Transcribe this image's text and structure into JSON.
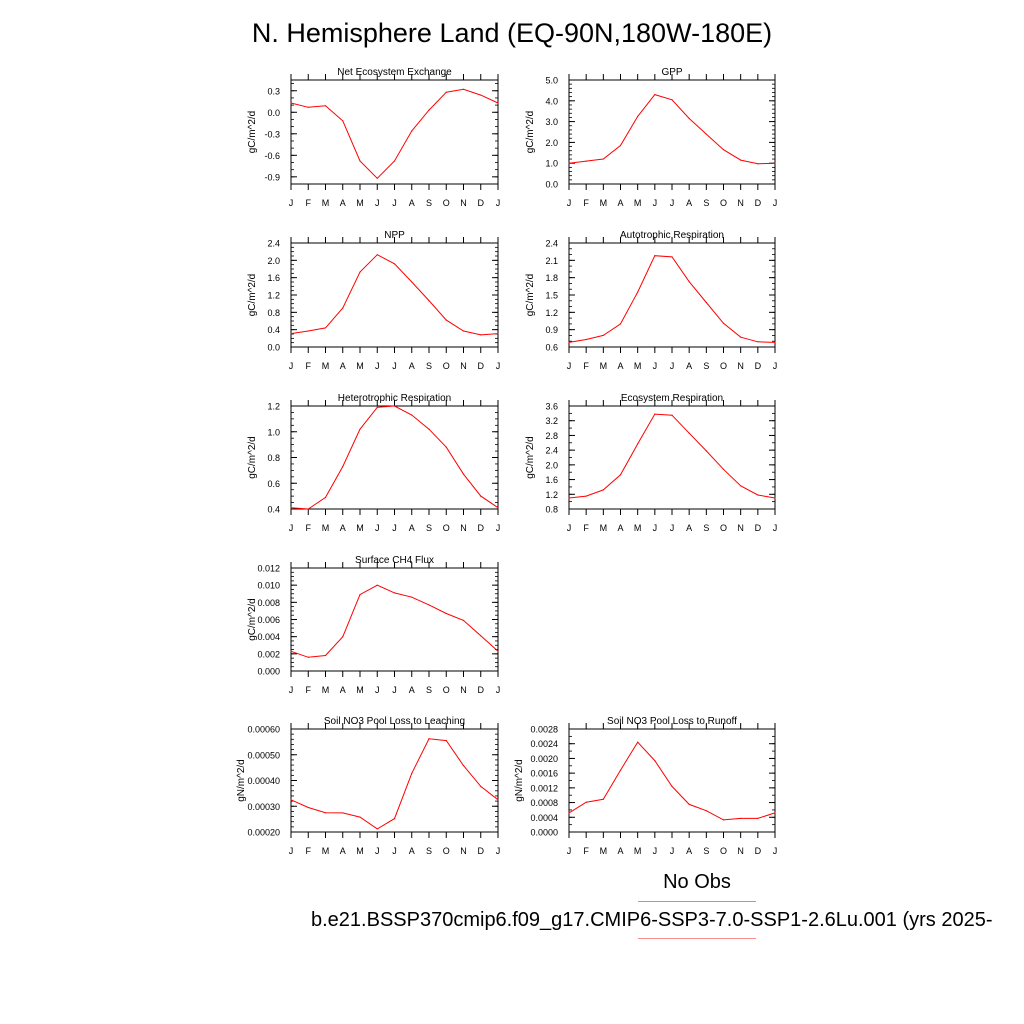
{
  "figure": {
    "title": "N. Hemisphere Land (EQ-90N,180W-180E)",
    "legend": {
      "obs_label": "No Obs",
      "obs_color": "#8f98f4",
      "case_label": "b.e21.BSSP370cmip6.f09_g17.CMIP6-SSP3-7.0-SSP1-2.6Lu.001 (yrs 2025-",
      "case_color": "#f48f8f"
    },
    "line_color": "#ff0000"
  },
  "chart_data": [
    {
      "type": "line",
      "title": "Net Ecosystem Exchange",
      "ylabel": "gC/m^2/d",
      "x": [
        "J",
        "F",
        "M",
        "A",
        "M",
        "J",
        "J",
        "A",
        "S",
        "O",
        "N",
        "D",
        "J"
      ],
      "series": [
        {
          "values": [
            0.13,
            0.07,
            0.09,
            -0.12,
            -0.68,
            -0.92,
            -0.68,
            -0.26,
            0.03,
            0.28,
            0.32,
            0.24,
            0.13
          ]
        }
      ],
      "ylim": [
        -1.0,
        0.45
      ],
      "yticks": [
        {
          "v": -0.9,
          "label": "-0.9"
        },
        {
          "v": -0.6,
          "label": "-0.6"
        },
        {
          "v": -0.3,
          "label": "-0.3"
        },
        {
          "v": 0.0,
          "label": "0.0"
        },
        {
          "v": 0.3,
          "label": "0.3"
        }
      ],
      "yminor": 0.1
    },
    {
      "type": "line",
      "title": "GPP",
      "ylabel": "gC/m^2/d",
      "x": [
        "J",
        "F",
        "M",
        "A",
        "M",
        "J",
        "J",
        "A",
        "S",
        "O",
        "N",
        "D",
        "J"
      ],
      "series": [
        {
          "values": [
            1.0,
            1.1,
            1.2,
            1.85,
            3.25,
            4.3,
            4.05,
            3.15,
            2.4,
            1.65,
            1.15,
            0.97,
            1.0
          ]
        }
      ],
      "ylim": [
        0.0,
        5.0
      ],
      "yticks": [
        {
          "v": 0,
          "label": "0.0"
        },
        {
          "v": 1,
          "label": "1.0"
        },
        {
          "v": 2,
          "label": "2.0"
        },
        {
          "v": 3,
          "label": "3.0"
        },
        {
          "v": 4,
          "label": "4.0"
        },
        {
          "v": 5,
          "label": "5.0"
        }
      ],
      "yminor": 0.2
    },
    {
      "type": "line",
      "title": "NPP",
      "ylabel": "gC/m^2/d",
      "x": [
        "J",
        "F",
        "M",
        "A",
        "M",
        "J",
        "J",
        "A",
        "S",
        "O",
        "N",
        "D",
        "J"
      ],
      "series": [
        {
          "values": [
            0.31,
            0.37,
            0.44,
            0.9,
            1.73,
            2.13,
            1.92,
            1.5,
            1.07,
            0.62,
            0.37,
            0.28,
            0.31
          ]
        }
      ],
      "ylim": [
        0.0,
        2.4
      ],
      "yticks": [
        {
          "v": 0,
          "label": "0.0"
        },
        {
          "v": 0.4,
          "label": "0.4"
        },
        {
          "v": 0.8,
          "label": "0.8"
        },
        {
          "v": 1.2,
          "label": "1.2"
        },
        {
          "v": 1.6,
          "label": "1.6"
        },
        {
          "v": 2.0,
          "label": "2.0"
        },
        {
          "v": 2.4,
          "label": "2.4"
        }
      ],
      "yminor": 0.1
    },
    {
      "type": "line",
      "title": "Autotrophic Respiration",
      "ylabel": "gC/m^2/d",
      "x": [
        "J",
        "F",
        "M",
        "A",
        "M",
        "J",
        "J",
        "A",
        "S",
        "O",
        "N",
        "D",
        "J"
      ],
      "series": [
        {
          "values": [
            0.68,
            0.73,
            0.8,
            1.0,
            1.55,
            2.18,
            2.16,
            1.73,
            1.37,
            1.01,
            0.77,
            0.69,
            0.68
          ]
        }
      ],
      "ylim": [
        0.6,
        2.4
      ],
      "yticks": [
        {
          "v": 0.6,
          "label": "0.6"
        },
        {
          "v": 0.9,
          "label": "0.9"
        },
        {
          "v": 1.2,
          "label": "1.2"
        },
        {
          "v": 1.5,
          "label": "1.5"
        },
        {
          "v": 1.8,
          "label": "1.8"
        },
        {
          "v": 2.1,
          "label": "2.1"
        },
        {
          "v": 2.4,
          "label": "2.4"
        }
      ],
      "yminor": 0.1
    },
    {
      "type": "line",
      "title": "Heterotrophic Respiration",
      "ylabel": "gC/m^2/d",
      "x": [
        "J",
        "F",
        "M",
        "A",
        "M",
        "J",
        "J",
        "A",
        "S",
        "O",
        "N",
        "D",
        "J"
      ],
      "series": [
        {
          "values": [
            0.41,
            0.4,
            0.49,
            0.73,
            1.02,
            1.19,
            1.2,
            1.13,
            1.02,
            0.88,
            0.67,
            0.5,
            0.41
          ]
        }
      ],
      "ylim": [
        0.4,
        1.2
      ],
      "yticks": [
        {
          "v": 0.4,
          "label": "0.4"
        },
        {
          "v": 0.6,
          "label": "0.6"
        },
        {
          "v": 0.8,
          "label": "0.8"
        },
        {
          "v": 1.0,
          "label": "1.0"
        },
        {
          "v": 1.2,
          "label": "1.2"
        }
      ],
      "yminor": 0.05
    },
    {
      "type": "line",
      "title": "Ecosystem Respiration",
      "ylabel": "gC/m^2/d",
      "x": [
        "J",
        "F",
        "M",
        "A",
        "M",
        "J",
        "J",
        "A",
        "S",
        "O",
        "N",
        "D",
        "J"
      ],
      "series": [
        {
          "values": [
            1.1,
            1.15,
            1.32,
            1.73,
            2.57,
            3.38,
            3.35,
            2.86,
            2.38,
            1.88,
            1.43,
            1.18,
            1.1
          ]
        }
      ],
      "ylim": [
        0.8,
        3.6
      ],
      "yticks": [
        {
          "v": 0.8,
          "label": "0.8"
        },
        {
          "v": 1.2,
          "label": "1.2"
        },
        {
          "v": 1.6,
          "label": "1.6"
        },
        {
          "v": 2.0,
          "label": "2.0"
        },
        {
          "v": 2.4,
          "label": "2.4"
        },
        {
          "v": 2.8,
          "label": "2.8"
        },
        {
          "v": 3.2,
          "label": "3.2"
        },
        {
          "v": 3.6,
          "label": "3.6"
        }
      ],
      "yminor": 0.2
    },
    {
      "type": "line",
      "title": "Surface CH4 Flux",
      "ylabel": "gC/m^2/d",
      "x": [
        "J",
        "F",
        "M",
        "A",
        "M",
        "J",
        "J",
        "A",
        "S",
        "O",
        "N",
        "D",
        "J"
      ],
      "series": [
        {
          "values": [
            0.0023,
            0.0016,
            0.0018,
            0.004,
            0.0089,
            0.01,
            0.0091,
            0.0086,
            0.0077,
            0.0067,
            0.0059,
            0.0041,
            0.0023
          ]
        }
      ],
      "ylim": [
        0.0,
        0.012
      ],
      "yticks": [
        {
          "v": 0,
          "label": "0.000"
        },
        {
          "v": 0.002,
          "label": "0.002"
        },
        {
          "v": 0.004,
          "label": "0.004"
        },
        {
          "v": 0.006,
          "label": "0.006"
        },
        {
          "v": 0.008,
          "label": "0.008"
        },
        {
          "v": 0.01,
          "label": "0.010"
        },
        {
          "v": 0.012,
          "label": "0.012"
        }
      ],
      "yminor": 0.0005
    },
    {
      "type": "line",
      "title": "Soil NO3 Pool Loss to Leaching",
      "ylabel": "gN/m^2/d",
      "x": [
        "J",
        "F",
        "M",
        "A",
        "M",
        "J",
        "J",
        "A",
        "S",
        "O",
        "N",
        "D",
        "J"
      ],
      "series": [
        {
          "values": [
            0.000325,
            0.000295,
            0.000275,
            0.000274,
            0.000258,
            0.000212,
            0.000252,
            0.000428,
            0.000562,
            0.000555,
            0.000458,
            0.000377,
            0.000325
          ]
        }
      ],
      "ylim": [
        0.0002,
        0.0006
      ],
      "yticks": [
        {
          "v": 0.0002,
          "label": "0.00020"
        },
        {
          "v": 0.0003,
          "label": "0.00030"
        },
        {
          "v": 0.0004,
          "label": "0.00040"
        },
        {
          "v": 0.0005,
          "label": "0.00050"
        },
        {
          "v": 0.0006,
          "label": "0.00060"
        }
      ],
      "yminor": 2e-05
    },
    {
      "type": "line",
      "title": "Soil NO3 Pool Loss to Runoff",
      "ylabel": "gN/m^2/d",
      "x": [
        "J",
        "F",
        "M",
        "A",
        "M",
        "J",
        "J",
        "A",
        "S",
        "O",
        "N",
        "D",
        "J"
      ],
      "series": [
        {
          "values": [
            0.00052,
            0.00081,
            0.00089,
            0.00168,
            0.00244,
            0.00194,
            0.00124,
            0.00075,
            0.00058,
            0.00033,
            0.00037,
            0.00037,
            0.00052
          ]
        }
      ],
      "ylim": [
        0.0,
        0.0028
      ],
      "yticks": [
        {
          "v": 0,
          "label": "0.0000"
        },
        {
          "v": 0.0004,
          "label": "0.0004"
        },
        {
          "v": 0.0008,
          "label": "0.0008"
        },
        {
          "v": 0.0012,
          "label": "0.0012"
        },
        {
          "v": 0.0016,
          "label": "0.0016"
        },
        {
          "v": 0.002,
          "label": "0.0020"
        },
        {
          "v": 0.0024,
          "label": "0.0024"
        },
        {
          "v": 0.0028,
          "label": "0.0028"
        }
      ],
      "yminor": 0.0002
    }
  ]
}
